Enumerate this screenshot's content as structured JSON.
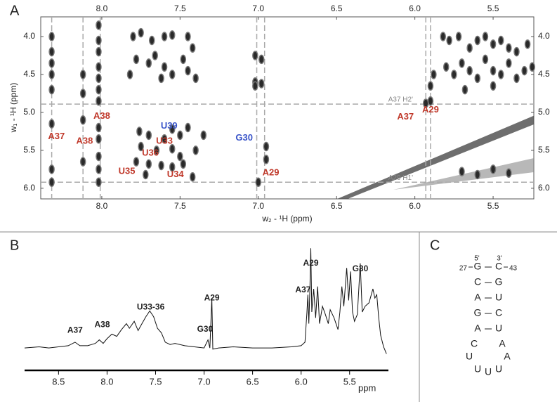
{
  "panel_labels": [
    "A",
    "B",
    "C"
  ],
  "chart_data": [
    {
      "type": "contour",
      "xlabel": "w₂ - ¹H (ppm)",
      "ylabel": "w₁ - ¹H (ppm)",
      "xlim": [
        8.39,
        5.24
      ],
      "ylim": [
        3.74,
        6.14
      ],
      "xticks": [
        {
          "value": 8,
          "label": "8.0"
        },
        7.5,
        {
          "value": 7,
          "label": "7.0"
        },
        6.5,
        {
          "value": 6,
          "label": "6.0"
        },
        5.5
      ],
      "yticks": [
        {
          "value": 4,
          "label": "4.0"
        },
        4.5,
        {
          "value": 5,
          "label": "5.0"
        },
        5.5,
        {
          "value": 6,
          "label": "6.0"
        }
      ],
      "color": "#2a2a2a",
      "x": [
        8.32,
        8.32,
        8.32,
        8.32,
        8.32,
        8.32,
        8.32,
        8.32,
        8.12,
        8.12,
        8.12,
        8.12,
        8.02,
        8.02,
        8.02,
        8.02,
        8.02,
        8.02,
        8.02,
        8.02,
        8.02,
        8.02,
        8.02,
        8.02,
        7.8,
        7.75,
        7.68,
        7.6,
        7.55,
        7.45,
        7.42,
        7.78,
        7.7,
        7.6,
        7.55,
        7.48,
        7.45,
        7.4,
        7.82,
        7.66,
        7.62,
        7.02,
        7.02,
        7.02,
        6.98,
        6.98,
        7.76,
        7.7,
        7.6,
        7.55,
        7.5,
        7.45,
        7.75,
        7.65,
        7.55,
        7.5,
        7.78,
        7.7,
        7.62,
        7.55,
        7.48,
        7.4,
        7.35,
        7.72,
        7.42,
        6.95,
        6.95,
        7.0,
        5.93,
        5.9,
        5.82,
        5.78,
        5.72,
        5.65,
        5.6,
        5.55,
        5.5,
        5.45,
        5.4,
        5.35,
        5.28,
        5.8,
        5.75,
        5.7,
        5.65,
        5.6,
        5.55,
        5.5,
        5.45,
        5.4,
        5.35,
        5.3,
        5.25,
        5.88,
        5.9,
        5.68,
        5.5,
        5.7,
        5.6,
        5.5,
        5.4
      ],
      "y": [
        4.0,
        4.2,
        4.35,
        4.5,
        4.7,
        5.15,
        5.75,
        5.92,
        4.5,
        4.75,
        5.1,
        5.65,
        3.85,
        4.05,
        4.2,
        4.4,
        4.55,
        4.7,
        4.85,
        5.2,
        5.35,
        5.58,
        5.75,
        5.92,
        4.0,
        3.95,
        4.05,
        4.0,
        3.98,
        4.0,
        4.15,
        4.3,
        4.35,
        4.4,
        4.5,
        4.3,
        4.45,
        4.55,
        4.5,
        4.25,
        4.55,
        4.25,
        4.6,
        4.65,
        4.3,
        4.62,
        5.25,
        5.3,
        5.35,
        5.22,
        5.3,
        5.2,
        5.45,
        5.5,
        5.48,
        5.58,
        5.65,
        5.68,
        5.7,
        5.72,
        5.68,
        5.5,
        5.3,
        5.82,
        5.85,
        5.45,
        5.62,
        5.92,
        4.88,
        4.85,
        4.0,
        4.05,
        4.0,
        4.15,
        4.05,
        4.0,
        4.1,
        4.05,
        4.15,
        4.2,
        4.1,
        4.4,
        4.5,
        4.35,
        4.45,
        4.55,
        4.3,
        4.45,
        4.5,
        4.35,
        4.55,
        4.45,
        4.4,
        4.5,
        4.65,
        4.7,
        4.65,
        5.78,
        5.82,
        5.75,
        5.8
      ],
      "vlines": [
        8.32,
        8.12,
        8.01,
        7.01,
        6.96,
        5.93,
        5.9
      ],
      "hlines": [
        {
          "value": 4.89,
          "label": "A37 H2'"
        },
        {
          "value": 5.92,
          "label": "A29 H1'"
        }
      ],
      "annotations": [
        {
          "text": "A37",
          "x": 8.29,
          "y": 5.32,
          "color": "#c0392b"
        },
        {
          "text": "A38",
          "x": 8.11,
          "y": 5.38,
          "color": "#c0392b"
        },
        {
          "text": "A38",
          "x": 8.0,
          "y": 5.05,
          "color": "#c0392b"
        },
        {
          "text": "U39",
          "x": 7.57,
          "y": 5.18,
          "color": "#3a55c9"
        },
        {
          "text": "U33",
          "x": 7.6,
          "y": 5.38,
          "color": "#c0392b"
        },
        {
          "text": "U36",
          "x": 7.69,
          "y": 5.54,
          "color": "#c0392b"
        },
        {
          "text": "U35",
          "x": 7.84,
          "y": 5.78,
          "color": "#c0392b"
        },
        {
          "text": "U34",
          "x": 7.53,
          "y": 5.82,
          "color": "#c0392b"
        },
        {
          "text": "G30",
          "x": 7.09,
          "y": 5.34,
          "color": "#3a55c9"
        },
        {
          "text": "A29",
          "x": 6.92,
          "y": 5.8,
          "color": "#c0392b"
        },
        {
          "text": "A37",
          "x": 6.06,
          "y": 5.06,
          "color": "#c0392b"
        },
        {
          "text": "A29",
          "x": 5.9,
          "y": 4.97,
          "color": "#c0392b"
        }
      ]
    },
    {
      "type": "line",
      "xlabel": "ppm",
      "xlim": [
        8.85,
        5.1
      ],
      "ylim": [
        0,
        100
      ],
      "xticks": [
        8.5,
        {
          "value": 8,
          "label": "8.0"
        },
        7.5,
        {
          "value": 7,
          "label": "7.0"
        },
        6.5,
        {
          "value": 6,
          "label": "6.0"
        },
        5.5
      ],
      "color": "#111111",
      "x": [
        8.85,
        8.7,
        8.6,
        8.5,
        8.4,
        8.33,
        8.28,
        8.2,
        8.12,
        8.08,
        8.04,
        8.0,
        7.95,
        7.9,
        7.85,
        7.8,
        7.77,
        7.72,
        7.68,
        7.64,
        7.6,
        7.56,
        7.52,
        7.48,
        7.44,
        7.4,
        7.35,
        7.3,
        7.2,
        7.1,
        7.0,
        6.96,
        6.94,
        6.92,
        6.91,
        6.85,
        6.7,
        6.5,
        6.3,
        6.1,
        6.0,
        5.96,
        5.94,
        5.93,
        5.92,
        5.91,
        5.9,
        5.89,
        5.87,
        5.85,
        5.83,
        5.81,
        5.78,
        5.75,
        5.72,
        5.7,
        5.66,
        5.62,
        5.6,
        5.58,
        5.56,
        5.53,
        5.51,
        5.49,
        5.47,
        5.45,
        5.42,
        5.39,
        5.37,
        5.34,
        5.3,
        5.26,
        5.24,
        5.22,
        5.2,
        5.18,
        5.15,
        5.12
      ],
      "values": [
        9,
        10,
        9,
        10,
        11,
        14,
        11,
        11,
        13,
        16,
        13,
        17,
        21,
        19,
        25,
        30,
        26,
        32,
        24,
        30,
        36,
        41,
        36,
        26,
        22,
        14,
        12,
        13,
        11,
        10,
        9,
        16,
        9,
        52,
        8,
        9,
        10,
        9,
        9,
        10,
        11,
        14,
        40,
        55,
        30,
        58,
        95,
        40,
        60,
        35,
        62,
        30,
        45,
        38,
        30,
        42,
        35,
        25,
        40,
        62,
        45,
        78,
        50,
        75,
        40,
        32,
        38,
        82,
        40,
        45,
        48,
        60,
        52,
        55,
        35,
        20,
        10,
        4
      ],
      "annotations": [
        {
          "text": "A37",
          "x": 8.33,
          "y": 24
        },
        {
          "text": "A38",
          "x": 8.05,
          "y": 29
        },
        {
          "text": "U33-36",
          "x": 7.55,
          "y": 44
        },
        {
          "text": "G30",
          "x": 6.99,
          "y": 25
        },
        {
          "text": "A29",
          "x": 6.92,
          "y": 52
        },
        {
          "text": "A37",
          "x": 5.98,
          "y": 59
        },
        {
          "text": "A29",
          "x": 5.9,
          "y": 82
        },
        {
          "text": "G30",
          "x": 5.39,
          "y": 77
        }
      ]
    }
  ],
  "structure": {
    "five_prime": "5'",
    "three_prime": "3'",
    "start": "27",
    "end": "43",
    "pairs": [
      [
        "G",
        "C"
      ],
      [
        "C",
        "G"
      ],
      [
        "A",
        "U"
      ],
      [
        "G",
        "C"
      ],
      [
        "A",
        "U"
      ]
    ],
    "loop": [
      "C",
      "A",
      "U",
      "A",
      "U",
      "U",
      "U"
    ]
  }
}
